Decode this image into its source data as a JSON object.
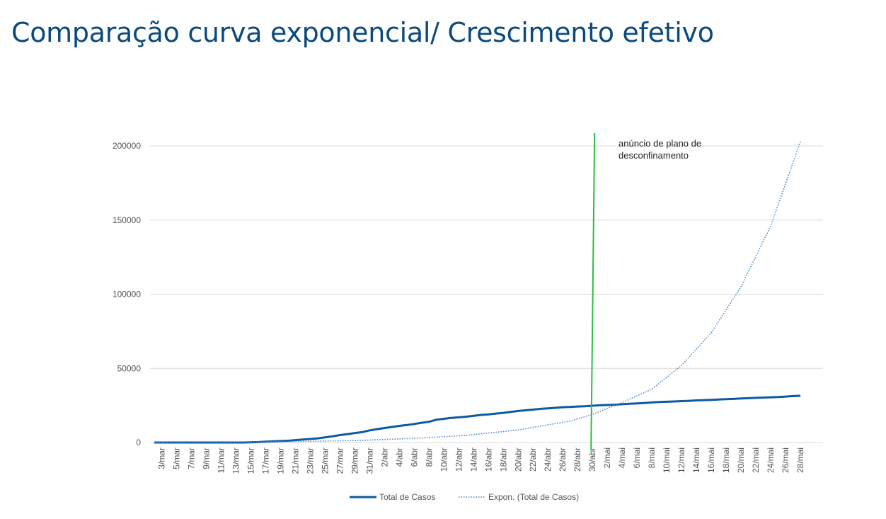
{
  "page": {
    "title": "Comparação curva exponencial/ Crescimento efetivo"
  },
  "colors": {
    "title": "#0b4a7d",
    "series_actual": "#0b5aa2",
    "series_expon": "#4f86c6",
    "annotation_line": "#2ebd3f",
    "grid": "#d9d9d9"
  },
  "chart_data": {
    "type": "line",
    "ylim": [
      0,
      200000
    ],
    "yticks": [
      0,
      50000,
      100000,
      150000,
      200000
    ],
    "ytick_labels": [
      "0",
      "50000",
      "100000",
      "150000",
      "200000"
    ],
    "xtick_labels": [
      "3/mar",
      "5/mar",
      "7/mar",
      "9/mar",
      "11/mar",
      "13/mar",
      "15/mar",
      "17/mar",
      "19/mar",
      "21/mar",
      "23/mar",
      "25/mar",
      "27/mar",
      "29/mar",
      "31/mar",
      "2/abr",
      "4/abr",
      "6/abr",
      "8/abr",
      "10/abr",
      "12/abr",
      "14/abr",
      "16/abr",
      "18/abr",
      "20/abr",
      "22/abr",
      "24/abr",
      "26/abr",
      "28/abr",
      "30/abr",
      "2/mai",
      "4/mai",
      "6/mai",
      "8/mai",
      "10/mai",
      "12/mai",
      "14/mai",
      "16/mai",
      "18/mai",
      "20/mai",
      "22/mai",
      "24/mai",
      "26/mai",
      "28/mai"
    ],
    "legend_position": "bottom",
    "grid": true,
    "annotation": {
      "x_label": "30/abr",
      "text_line1": "anúncio de plano de",
      "text_line2": "desconfinamento"
    },
    "series": [
      {
        "name": "Total de Casos",
        "style": "solid",
        "points": [
          [
            "2/mar",
            0
          ],
          [
            "4/mar",
            0
          ],
          [
            "6/mar",
            0
          ],
          [
            "8/mar",
            0
          ],
          [
            "10/mar",
            0
          ],
          [
            "12/mar",
            0
          ],
          [
            "14/mar",
            0
          ],
          [
            "16/mar",
            300
          ],
          [
            "17/mar",
            600
          ],
          [
            "18/mar",
            800
          ],
          [
            "19/mar",
            1000
          ],
          [
            "20/mar",
            1200
          ],
          [
            "21/mar",
            1600
          ],
          [
            "22/mar",
            2000
          ],
          [
            "23/mar",
            2400
          ],
          [
            "24/mar",
            2800
          ],
          [
            "25/mar",
            3500
          ],
          [
            "26/mar",
            4200
          ],
          [
            "27/mar",
            5000
          ],
          [
            "28/mar",
            5700
          ],
          [
            "29/mar",
            6400
          ],
          [
            "30/mar",
            7000
          ],
          [
            "31/mar",
            8200
          ],
          [
            "1/abr",
            9000
          ],
          [
            "2/abr",
            9800
          ],
          [
            "3/abr",
            10500
          ],
          [
            "4/abr",
            11200
          ],
          [
            "5/abr",
            11800
          ],
          [
            "6/abr",
            12500
          ],
          [
            "7/abr",
            13300
          ],
          [
            "8/abr",
            14000
          ],
          [
            "9/abr",
            15400
          ],
          [
            "10/abr",
            16000
          ],
          [
            "11/abr",
            16600
          ],
          [
            "12/abr",
            17000
          ],
          [
            "13/abr",
            17400
          ],
          [
            "14/abr",
            18000
          ],
          [
            "15/abr",
            18600
          ],
          [
            "16/abr",
            19000
          ],
          [
            "17/abr",
            19500
          ],
          [
            "18/abr",
            20000
          ],
          [
            "19/abr",
            20600
          ],
          [
            "20/abr",
            21300
          ],
          [
            "21/abr",
            21700
          ],
          [
            "22/abr",
            22200
          ],
          [
            "23/abr",
            22700
          ],
          [
            "24/abr",
            23000
          ],
          [
            "25/abr",
            23400
          ],
          [
            "26/abr",
            23800
          ],
          [
            "27/abr",
            24000
          ],
          [
            "28/abr",
            24300
          ],
          [
            "29/abr",
            24500
          ],
          [
            "30/abr",
            24800
          ],
          [
            "1/mai",
            25100
          ],
          [
            "2/mai",
            25300
          ],
          [
            "3/mai",
            25500
          ],
          [
            "4/mai",
            25800
          ],
          [
            "5/mai",
            26100
          ],
          [
            "6/mai",
            26400
          ],
          [
            "7/mai",
            26700
          ],
          [
            "8/mai",
            27000
          ],
          [
            "9/mai",
            27300
          ],
          [
            "10/mai",
            27500
          ],
          [
            "11/mai",
            27700
          ],
          [
            "12/mai",
            27900
          ],
          [
            "13/mai",
            28100
          ],
          [
            "14/mai",
            28400
          ],
          [
            "15/mai",
            28600
          ],
          [
            "16/mai",
            28800
          ],
          [
            "17/mai",
            29000
          ],
          [
            "18/mai",
            29200
          ],
          [
            "19/mai",
            29400
          ],
          [
            "20/mai",
            29700
          ],
          [
            "21/mai",
            29900
          ],
          [
            "22/mai",
            30100
          ],
          [
            "23/mai",
            30300
          ],
          [
            "24/mai",
            30500
          ],
          [
            "25/mai",
            30700
          ],
          [
            "26/mai",
            31000
          ],
          [
            "27/mai",
            31300
          ],
          [
            "28/mai",
            31500
          ]
        ]
      },
      {
        "name": "Expon. (Total de Casos)",
        "style": "dotted",
        "points": [
          [
            "2/mar",
            0
          ],
          [
            "9/mar",
            0
          ],
          [
            "16/mar",
            400
          ],
          [
            "23/mar",
            800
          ],
          [
            "30/mar",
            1500
          ],
          [
            "6/abr",
            2800
          ],
          [
            "13/abr",
            4800
          ],
          [
            "20/abr",
            8500
          ],
          [
            "27/abr",
            14500
          ],
          [
            "30/abr",
            19000
          ],
          [
            "4/mai",
            27000
          ],
          [
            "8/mai",
            36000
          ],
          [
            "12/mai",
            52000
          ],
          [
            "16/mai",
            74000
          ],
          [
            "20/mai",
            105000
          ],
          [
            "24/mai",
            146000
          ],
          [
            "28/mai",
            203000
          ]
        ]
      }
    ]
  }
}
